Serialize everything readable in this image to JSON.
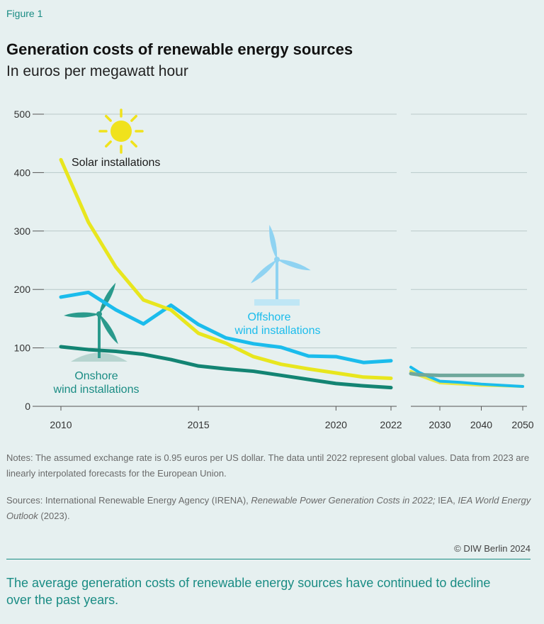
{
  "figure_label": "Figure 1",
  "title": "Generation costs of renewable energy sources",
  "subtitle": "In euros per megawatt hour",
  "notes": "Notes: The assumed exchange rate is 0.95 euros per US dollar. The data until 2022 represent global values. Data from 2023 are linearly interpolated forecasts for the European Union.",
  "sources": {
    "prefix": "Sources: International Renewable Energy Agency (IRENA), ",
    "irena_title": "Renewable Power Generation Costs in 2022;",
    "middle": " IEA, ",
    "iea_title": "IEA World Energy Outlook",
    "suffix": " (2023)."
  },
  "copyright": "© DIW Berlin 2024",
  "takeaway": "The average generation costs of renewable energy sources have continued to decline over the past years.",
  "colors": {
    "solar": "#e8e61e",
    "offshore": "#1bbcec",
    "onshore": "#138473",
    "onshore_forecast": "#6fa89c",
    "grid": "#b9c9c9",
    "accent": "#1a8c84",
    "sun": "#f0e21c",
    "offshore_icon": "#8fd3f2",
    "onshore_icon": "#2a9a8c"
  },
  "chart_data": {
    "type": "line",
    "ylim": [
      0,
      500
    ],
    "yticks": [
      0,
      100,
      200,
      300,
      400,
      500
    ],
    "panels": [
      {
        "xlim": [
          2010,
          2022
        ],
        "xticks": [
          "2010",
          "2015",
          "2020",
          "2022"
        ]
      },
      {
        "xlim": [
          2023,
          2050
        ],
        "xticks": [
          "2030",
          "2040",
          "2050"
        ]
      }
    ],
    "series": [
      {
        "name": "Solar installations",
        "key": "solar",
        "historical": [
          [
            2010,
            422
          ],
          [
            2011,
            315
          ],
          [
            2012,
            238
          ],
          [
            2013,
            182
          ],
          [
            2014,
            165
          ],
          [
            2015,
            125
          ],
          [
            2016,
            108
          ],
          [
            2017,
            85
          ],
          [
            2018,
            72
          ],
          [
            2019,
            64
          ],
          [
            2020,
            57
          ],
          [
            2021,
            50
          ],
          [
            2022,
            48
          ]
        ],
        "forecast": [
          [
            2023,
            60
          ],
          [
            2025,
            53
          ],
          [
            2030,
            40
          ],
          [
            2035,
            38
          ],
          [
            2040,
            36
          ],
          [
            2045,
            35
          ],
          [
            2050,
            34
          ]
        ]
      },
      {
        "name": "Offshore wind installations",
        "key": "offshore",
        "historical": [
          [
            2010,
            187
          ],
          [
            2011,
            195
          ],
          [
            2012,
            165
          ],
          [
            2013,
            141
          ],
          [
            2014,
            173
          ],
          [
            2015,
            140
          ],
          [
            2016,
            117
          ],
          [
            2017,
            107
          ],
          [
            2018,
            101
          ],
          [
            2019,
            86
          ],
          [
            2020,
            85
          ],
          [
            2021,
            75
          ],
          [
            2022,
            78
          ]
        ],
        "forecast": [
          [
            2023,
            67
          ],
          [
            2025,
            58
          ],
          [
            2030,
            43
          ],
          [
            2035,
            41
          ],
          [
            2040,
            38
          ],
          [
            2045,
            36
          ],
          [
            2050,
            34
          ]
        ]
      },
      {
        "name": "Onshore wind installations",
        "key": "onshore",
        "historical": [
          [
            2010,
            102
          ],
          [
            2011,
            97
          ],
          [
            2012,
            94
          ],
          [
            2013,
            89
          ],
          [
            2014,
            80
          ],
          [
            2015,
            69
          ],
          [
            2016,
            64
          ],
          [
            2017,
            60
          ],
          [
            2018,
            53
          ],
          [
            2019,
            46
          ],
          [
            2020,
            39
          ],
          [
            2021,
            35
          ],
          [
            2022,
            32
          ]
        ],
        "forecast": [
          [
            2023,
            56
          ],
          [
            2025,
            54
          ],
          [
            2030,
            53
          ],
          [
            2040,
            53
          ],
          [
            2050,
            53
          ]
        ]
      }
    ],
    "labels": {
      "solar": "Solar installations",
      "offshore_line1": "Offshore",
      "offshore_line2": "wind installations",
      "onshore_line1": "Onshore",
      "onshore_line2": "wind installations"
    }
  }
}
